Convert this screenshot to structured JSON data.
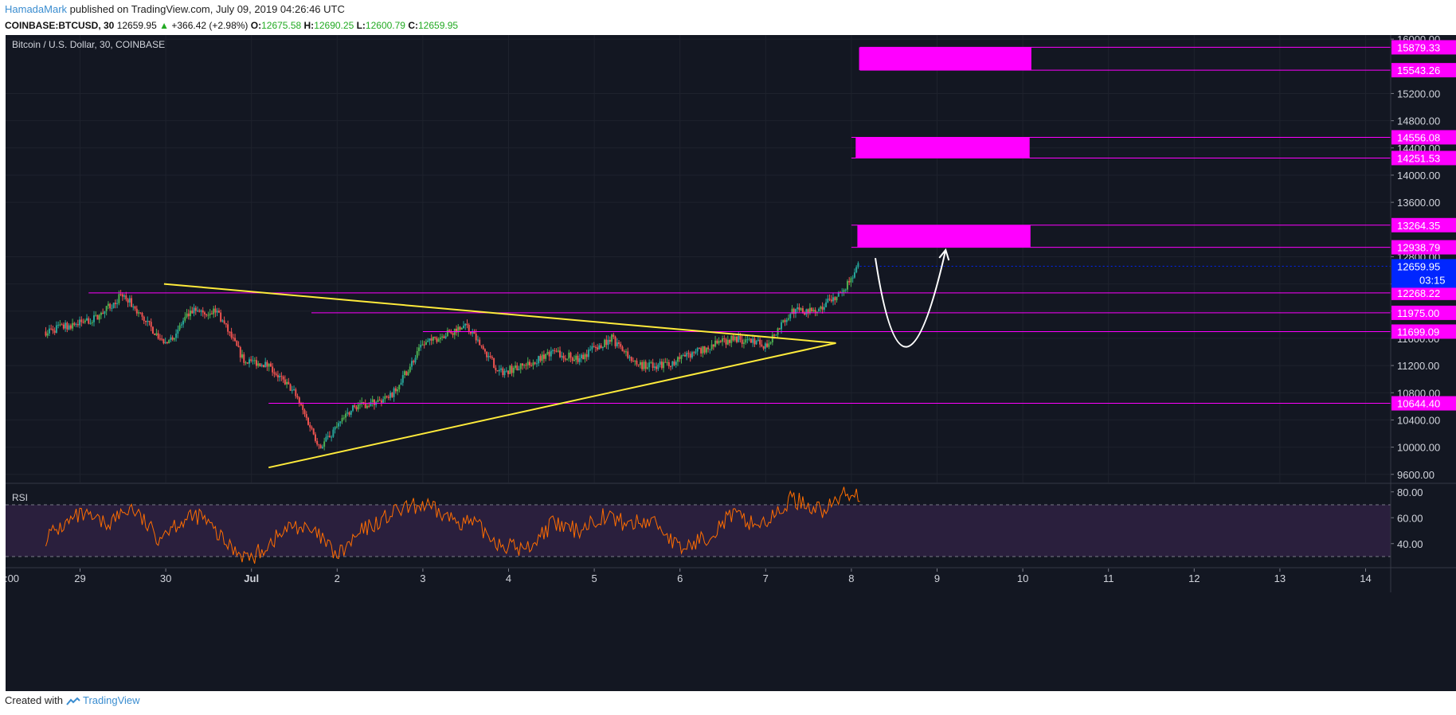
{
  "header": {
    "author": "HamadaMark",
    "published": "published on TradingView.com, July 09, 2019 04:26:46 UTC",
    "symbol": "COINBASE:BTCUSD, 30",
    "last": "12659.95",
    "change": "+366.42 (+2.98%)",
    "o_label": "O:",
    "o": "12675.58",
    "h_label": "H:",
    "h": "12690.25",
    "l_label": "L:",
    "l": "12600.79",
    "c_label": "C:",
    "c": "12659.95"
  },
  "footer": {
    "created": "Created with",
    "brand": "TradingView"
  },
  "colors": {
    "background": "#131722",
    "candle_up": "#26a69a",
    "candle_up_alt": "#4caf50",
    "candle_down": "#ef5350",
    "level": "#ff00ff",
    "triangle": "#ffeb3b",
    "rsi_line": "#ff6d00",
    "rsi_band": "#2a1f3d",
    "current_price": "#0026ff"
  },
  "chart_data": [
    {
      "type": "candlestick",
      "title": "Bitcoin / U.S. Dollar, 30, COINBASE",
      "x_ticks": [
        ":00",
        "29",
        "30",
        "Jul",
        "2",
        "3",
        "4",
        "5",
        "6",
        "7",
        "8",
        "9",
        "10",
        "11",
        "12",
        "13",
        "14"
      ],
      "y_ticks": [
        9600,
        10000,
        10400,
        10800,
        11200,
        11600,
        12000,
        12400,
        12800,
        13600,
        14000,
        14400,
        14800,
        15200,
        16000
      ],
      "y_tick_labels": [
        "9600.00",
        "10000.00",
        "10400.00",
        "10800.00",
        "11200.00",
        "11600.00",
        "12000.00",
        "12400.00",
        "12800.00",
        "13600.00",
        "14000.00",
        "14400.00",
        "14800.00",
        "15200.00",
        "16000.00"
      ],
      "ylim": [
        9480,
        16060
      ],
      "price_path_x": [
        -0.4,
        0.2,
        0.5,
        1.0,
        1.3,
        1.6,
        1.9,
        2.2,
        2.5,
        2.8,
        3.2,
        3.6,
        4.0,
        4.5,
        4.9,
        5.2,
        5.5,
        5.8,
        6.2,
        6.5,
        6.8,
        7.2,
        7.6,
        8.0,
        8.3,
        8.6,
        8.9,
        9.0,
        9.08
      ],
      "price_path_y": [
        11700,
        11900,
        12250,
        11500,
        12000,
        12000,
        11300,
        11200,
        10800,
        10000,
        10600,
        10700,
        11500,
        11800,
        11100,
        11200,
        11400,
        11300,
        11600,
        11200,
        11200,
        11400,
        11600,
        11500,
        12000,
        12000,
        12300,
        12500,
        12650
      ],
      "current_price": "12659.95",
      "countdown": "03:15",
      "levels": [
        {
          "value": 15879.33,
          "label": "15879.33"
        },
        {
          "value": 15543.26,
          "label": "15543.26"
        },
        {
          "value": 14556.08,
          "label": "14556.08"
        },
        {
          "value": 14251.53,
          "label": "14251.53"
        },
        {
          "value": 13264.35,
          "label": "13264.35"
        },
        {
          "value": 12938.79,
          "label": "12938.79"
        },
        {
          "value": 12268.22,
          "label": "12268.22"
        },
        {
          "value": 11975.0,
          "label": "11975.00"
        },
        {
          "value": 11699.09,
          "label": "11699.09"
        },
        {
          "value": 10644.4,
          "label": "10644.40"
        }
      ],
      "level_x_start": [
        9.1,
        9.1,
        9.0,
        9.0,
        9.0,
        9.0,
        0.1,
        2.7,
        4.0,
        2.2
      ],
      "zones": [
        {
          "x_start": 9.09,
          "x_end": 11.1,
          "low": 15543.26,
          "high": 15879.33
        },
        {
          "x_start": 9.05,
          "x_end": 11.08,
          "low": 14251.53,
          "high": 14556.08
        },
        {
          "x_start": 9.07,
          "x_end": 11.09,
          "low": 12938.79,
          "high": 13264.35
        }
      ],
      "triangle_lines": [
        {
          "x": [
            0.98,
            8.82
          ],
          "y": [
            12400,
            11530
          ]
        },
        {
          "x": [
            2.2,
            8.82
          ],
          "y": [
            9700,
            11530
          ]
        }
      ],
      "projection_curve": {
        "x": [
          9.28,
          9.6,
          10.1
        ],
        "y": [
          12780,
          11750,
          12900
        ]
      }
    },
    {
      "type": "line",
      "title": "RSI",
      "y_ticks": [
        40,
        60,
        80
      ],
      "y_tick_labels": [
        "40.00",
        "60.00",
        "80.00"
      ],
      "ylim": [
        22,
        86
      ],
      "bands": [
        30,
        70
      ],
      "x": [
        -0.4,
        0.0,
        0.3,
        0.6,
        0.9,
        1.1,
        1.4,
        1.7,
        2.0,
        2.2,
        2.5,
        2.8,
        3.0,
        3.3,
        3.7,
        4.0,
        4.3,
        4.6,
        4.9,
        5.2,
        5.5,
        5.8,
        6.1,
        6.4,
        6.7,
        7.0,
        7.3,
        7.6,
        7.9,
        8.1,
        8.3,
        8.5,
        8.7,
        8.9,
        9.0,
        9.1
      ],
      "y": [
        45,
        62,
        55,
        68,
        45,
        55,
        62,
        40,
        28,
        40,
        55,
        45,
        30,
        50,
        65,
        70,
        60,
        55,
        40,
        35,
        55,
        50,
        62,
        55,
        58,
        35,
        45,
        62,
        55,
        60,
        75,
        70,
        65,
        78,
        80,
        78
      ]
    }
  ]
}
